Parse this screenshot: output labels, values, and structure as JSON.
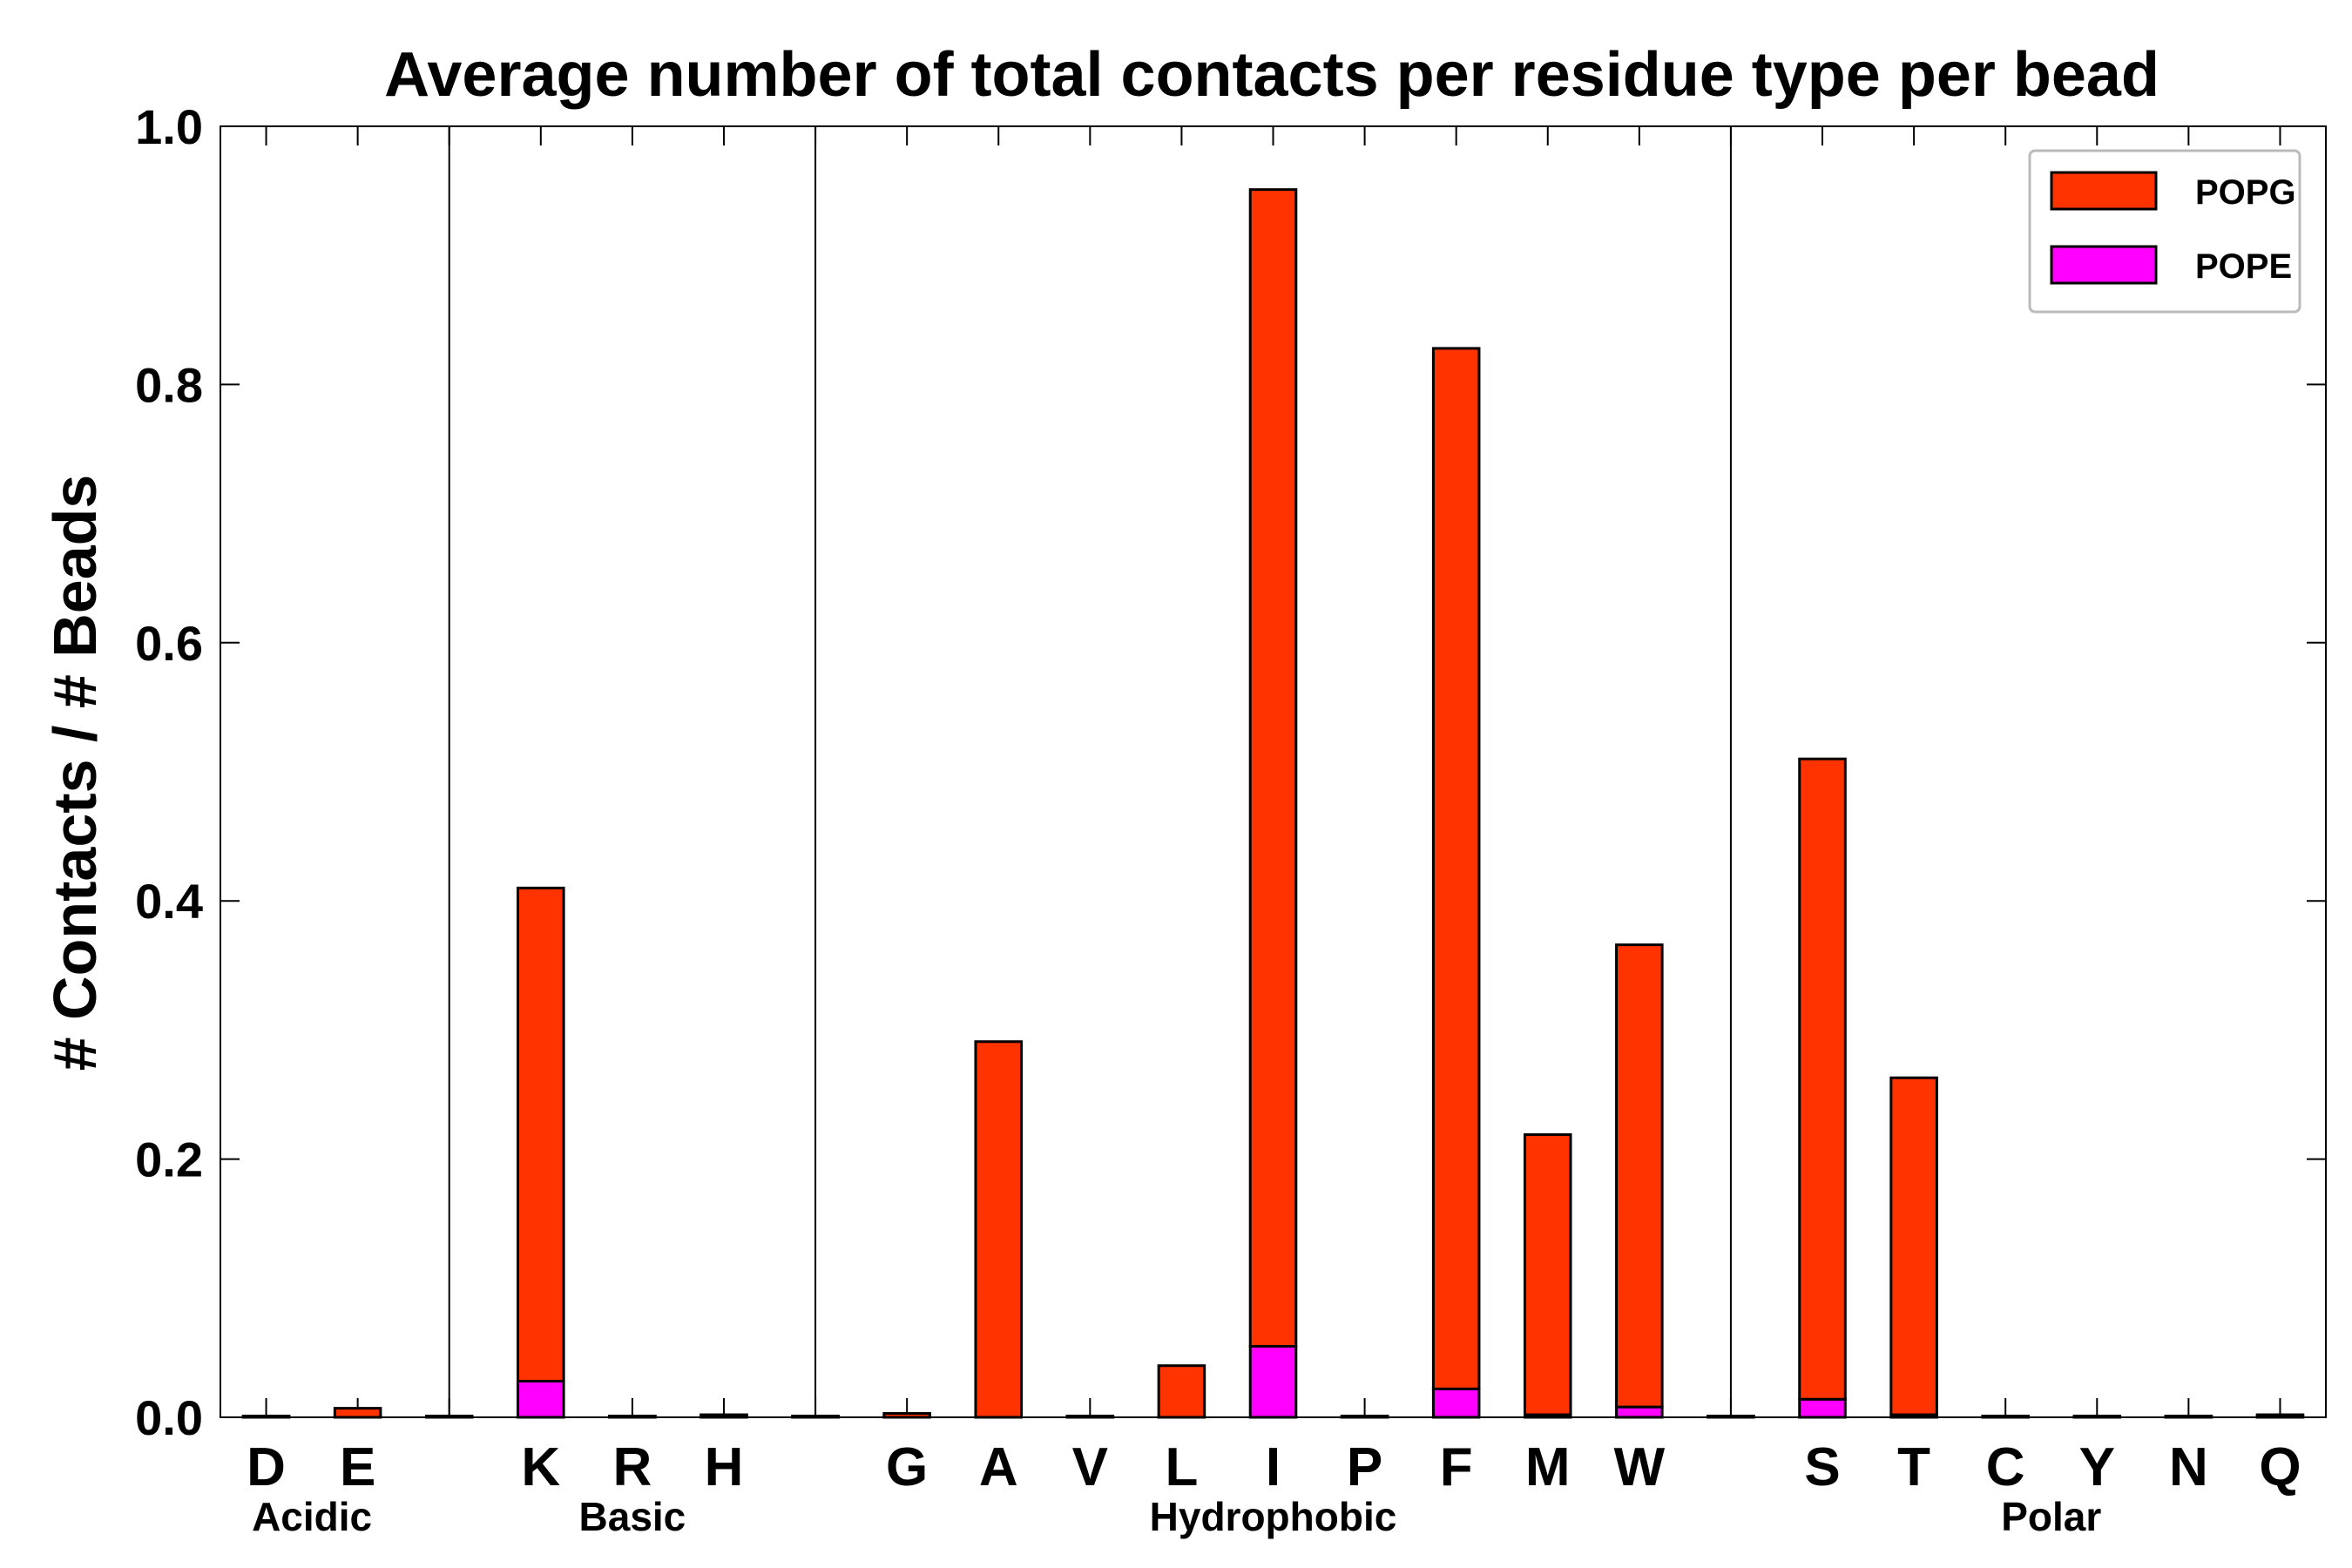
{
  "chart_data": {
    "type": "bar",
    "stacked": true,
    "title": "Average number of total contacts per residue type per bead",
    "xlabel": "",
    "ylabel": "# Contacts / # Beads",
    "ylim": [
      0,
      1.0
    ],
    "yticks": [
      "0.0",
      "0.2",
      "0.4",
      "0.6",
      "0.8",
      "1.0"
    ],
    "grid": false,
    "legend_position": "top-right",
    "categories": [
      "D",
      "E",
      "",
      "K",
      "R",
      "H",
      "",
      "G",
      "A",
      "V",
      "L",
      "I",
      "P",
      "F",
      "M",
      "W",
      "",
      "S",
      "T",
      "C",
      "Y",
      "N",
      "Q"
    ],
    "groups": [
      {
        "name": "Acidic",
        "members": [
          "D",
          "E"
        ]
      },
      {
        "name": "Basic",
        "members": [
          "K",
          "R",
          "H"
        ]
      },
      {
        "name": "Hydrophobic",
        "members": [
          "G",
          "A",
          "V",
          "L",
          "I",
          "P",
          "F",
          "M",
          "W"
        ]
      },
      {
        "name": "Polar",
        "members": [
          "S",
          "T",
          "C",
          "Y",
          "N",
          "Q"
        ]
      }
    ],
    "series": [
      {
        "name": "POPE",
        "color": "#ff00ff",
        "values": [
          0,
          0,
          0,
          0.028,
          0,
          0,
          0,
          0,
          0,
          0,
          0,
          0.055,
          0,
          0.022,
          0.002,
          0.008,
          0,
          0.014,
          0.002,
          0,
          0,
          0,
          0
        ]
      },
      {
        "name": "POPG",
        "color": "#ff3300",
        "values": [
          0,
          0.007,
          0,
          0.382,
          0,
          0.002,
          0,
          0.003,
          0.291,
          0,
          0.04,
          0.896,
          0,
          0.806,
          0.217,
          0.358,
          0,
          0.496,
          0.261,
          0,
          0,
          0,
          0.002
        ]
      }
    ],
    "legend": [
      {
        "label": "POPG",
        "color": "#ff3300"
      },
      {
        "label": "POPE",
        "color": "#ff00ff"
      }
    ]
  }
}
